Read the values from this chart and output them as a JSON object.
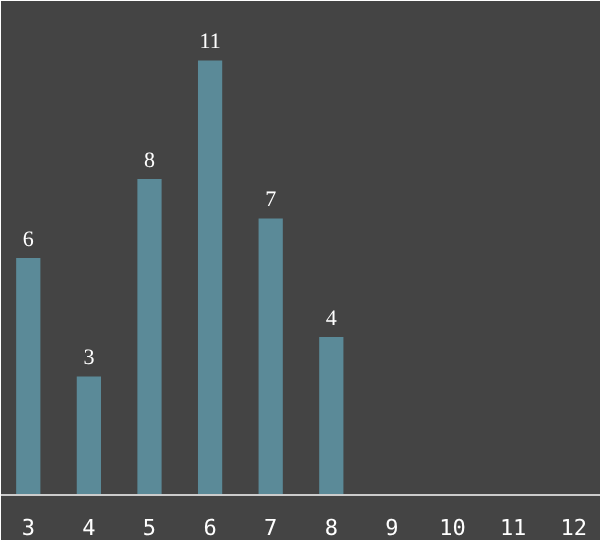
{
  "chart_data": {
    "type": "bar",
    "categories": [
      "3",
      "4",
      "5",
      "6",
      "7",
      "8",
      "9",
      "10",
      "11",
      "12"
    ],
    "values": [
      6,
      3,
      8,
      11,
      7,
      4,
      null,
      null,
      null,
      null
    ],
    "color": "#5b8a98",
    "data_labels": true
  }
}
